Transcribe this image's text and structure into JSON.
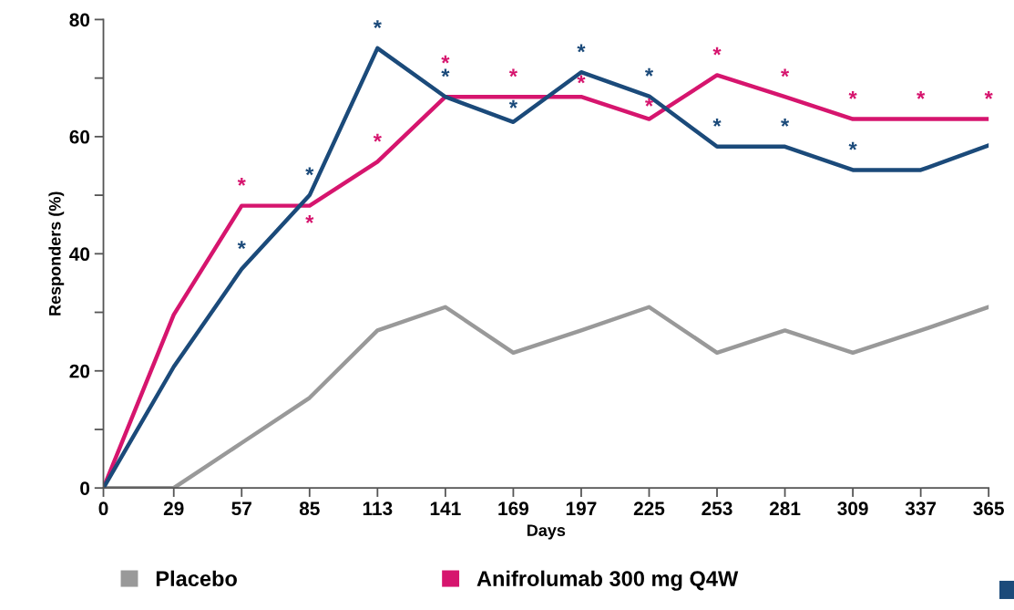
{
  "chart_data": {
    "type": "line",
    "xlabel": "Days",
    "ylabel": "Responders (%)",
    "x": [
      0,
      29,
      57,
      85,
      113,
      141,
      169,
      197,
      225,
      253,
      281,
      309,
      337,
      365
    ],
    "series": [
      {
        "name": "Placebo",
        "color": "#999999",
        "values": [
          0,
          0,
          7.7,
          15.4,
          26.9,
          30.9,
          23.1,
          26.9,
          30.9,
          23.1,
          26.9,
          23.1,
          26.9,
          30.9
        ]
      },
      {
        "name": "Anifrolumab 300 mg Q4W",
        "color": "#d6156e",
        "values": [
          0,
          29.6,
          48.2,
          48.2,
          55.7,
          66.8,
          66.8,
          66.8,
          63.0,
          70.5,
          66.8,
          63.0,
          63.0,
          63.0
        ]
      },
      {
        "color": "#1b4a7a",
        "values": [
          0,
          20.7,
          37.4,
          50.0,
          75.1,
          66.8,
          62.5,
          71.0,
          66.9,
          58.3,
          58.3,
          54.3,
          54.3,
          58.5
        ]
      }
    ],
    "annotations": [
      {
        "text": "*",
        "x": 57,
        "y": 48.2
      },
      {
        "text": "*",
        "x": 85,
        "y": 48.2
      },
      {
        "text": "*",
        "x": 113,
        "y": 55.7
      },
      {
        "text": "*",
        "x": 141,
        "y": 66.8
      },
      {
        "text": "*",
        "x": 169,
        "y": 66.8
      },
      {
        "text": "*",
        "x": 197,
        "y": 66.8
      },
      {
        "text": "*",
        "x": 225,
        "y": 63.0
      },
      {
        "text": "*",
        "x": 253,
        "y": 70.5
      },
      {
        "text": "*",
        "x": 281,
        "y": 66.8
      },
      {
        "text": "*",
        "x": 309,
        "y": 63.0
      },
      {
        "text": "*",
        "x": 337,
        "y": 63.0
      },
      {
        "text": "*",
        "x": 365,
        "y": 63.0
      },
      {
        "text": "*",
        "x": 57,
        "y": 37.4
      },
      {
        "text": "*",
        "x": 85,
        "y": 50.0
      },
      {
        "text": "*",
        "x": 113,
        "y": 75.1
      },
      {
        "text": "*",
        "x": 141,
        "y": 66.8
      },
      {
        "text": "*",
        "x": 169,
        "y": 62.5
      },
      {
        "text": "*",
        "x": 197,
        "y": 71.0
      },
      {
        "text": "*",
        "x": 225,
        "y": 66.9
      },
      {
        "text": "*",
        "x": 253,
        "y": 58.3
      },
      {
        "text": "*",
        "x": 281,
        "y": 58.3
      },
      {
        "text": "*",
        "x": 309,
        "y": 54.3
      }
    ],
    "xlim": [
      0,
      365
    ],
    "ylim": [
      0,
      80
    ],
    "xticks": [
      0,
      29,
      57,
      85,
      113,
      141,
      169,
      197,
      225,
      253,
      281,
      309,
      337,
      365
    ],
    "yticks": [
      0,
      {
        "value": 10,
        "label": null
      },
      20,
      {
        "value": 30,
        "label": null
      },
      40,
      {
        "value": 50,
        "label": null
      },
      60,
      {
        "value": 70,
        "label": null
      },
      80
    ],
    "grid": false,
    "legend": "bottom",
    "marker": "none",
    "line_style": "solid"
  }
}
